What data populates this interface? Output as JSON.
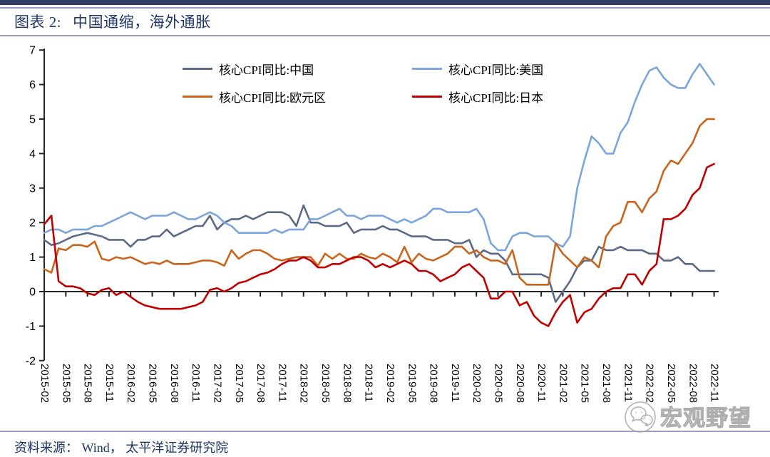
{
  "header": {
    "figure_label": "图表 2:"
  },
  "footer": {
    "source": "资料来源： Wind， 太平洋证券研究院"
  },
  "watermark": {
    "label": "宏观野望",
    "icon": "wechat-icon"
  },
  "chart_data": {
    "type": "line",
    "title": "中国通缩，海外通胀",
    "xlabel": "",
    "ylabel": "",
    "ylim": [
      -2,
      7
    ],
    "y_ticks": [
      7,
      6,
      5,
      4,
      3,
      2,
      1,
      0,
      -1,
      -2
    ],
    "grid": false,
    "legend_position": "top-inside",
    "start_month": "2015-02",
    "x_tick_every": 3,
    "x_labels": [
      "2015-02",
      "2015-05",
      "2015-08",
      "2015-11",
      "2016-02",
      "2016-05",
      "2016-08",
      "2016-11",
      "2017-02",
      "2017-05",
      "2017-08",
      "2017-11",
      "2018-02",
      "2018-05",
      "2018-08",
      "2018-11",
      "2019-02",
      "2019-05",
      "2019-08",
      "2019-11",
      "2020-02",
      "2020-05",
      "2020-08",
      "2020-11",
      "2021-02",
      "2021-05",
      "2021-08",
      "2021-11",
      "2022-02",
      "2022-05",
      "2022-08",
      "2022-11"
    ],
    "series": [
      {
        "name": "核心CPI同比:中国",
        "color": "#5B6B85",
        "values": [
          1.5,
          1.35,
          1.4,
          1.5,
          1.6,
          1.65,
          1.7,
          1.65,
          1.6,
          1.5,
          1.5,
          1.5,
          1.3,
          1.5,
          1.5,
          1.6,
          1.6,
          1.8,
          1.6,
          1.7,
          1.8,
          1.9,
          1.9,
          2.2,
          1.8,
          2.0,
          2.1,
          2.1,
          2.2,
          2.1,
          2.2,
          2.3,
          2.3,
          2.3,
          2.2,
          1.9,
          2.5,
          2.0,
          2.0,
          1.9,
          1.9,
          1.9,
          2.0,
          1.7,
          1.8,
          1.8,
          1.8,
          1.9,
          1.8,
          1.8,
          1.7,
          1.6,
          1.6,
          1.6,
          1.5,
          1.5,
          1.5,
          1.4,
          1.4,
          1.5,
          1.0,
          1.2,
          1.1,
          1.1,
          0.9,
          0.5,
          0.5,
          0.5,
          0.5,
          0.5,
          0.4,
          -0.3,
          0.0,
          0.3,
          0.7,
          0.9,
          0.9,
          1.3,
          1.2,
          1.2,
          1.3,
          1.2,
          1.2,
          1.2,
          1.1,
          1.1,
          0.9,
          0.9,
          1.0,
          0.8,
          0.8,
          0.6,
          0.6,
          0.6
        ]
      },
      {
        "name": "核心CPI同比:美国",
        "color": "#7CA5DB",
        "values": [
          1.7,
          1.8,
          1.8,
          1.7,
          1.8,
          1.8,
          1.8,
          1.9,
          1.9,
          2.0,
          2.1,
          2.2,
          2.3,
          2.2,
          2.1,
          2.2,
          2.2,
          2.2,
          2.3,
          2.2,
          2.1,
          2.1,
          2.2,
          2.3,
          2.2,
          2.0,
          1.9,
          1.7,
          1.7,
          1.7,
          1.7,
          1.7,
          1.8,
          1.7,
          1.8,
          1.8,
          1.8,
          2.1,
          2.1,
          2.2,
          2.3,
          2.4,
          2.2,
          2.2,
          2.1,
          2.2,
          2.2,
          2.2,
          2.1,
          2.0,
          2.1,
          2.0,
          2.1,
          2.2,
          2.4,
          2.4,
          2.3,
          2.3,
          2.3,
          2.3,
          2.4,
          2.1,
          1.4,
          1.2,
          1.2,
          1.6,
          1.7,
          1.7,
          1.6,
          1.6,
          1.6,
          1.4,
          1.3,
          1.6,
          3.0,
          3.8,
          4.5,
          4.3,
          4.0,
          4.0,
          4.6,
          4.9,
          5.5,
          6.0,
          6.4,
          6.5,
          6.2,
          6.0,
          5.9,
          5.9,
          6.3,
          6.6,
          6.3,
          6.0
        ]
      },
      {
        "name": "核心CPI同比:欧元区",
        "color": "#C8651B",
        "values": [
          0.65,
          0.55,
          1.25,
          1.2,
          1.35,
          1.35,
          1.3,
          1.45,
          0.95,
          0.9,
          1.0,
          0.95,
          1.0,
          0.9,
          0.8,
          0.85,
          0.8,
          0.9,
          0.8,
          0.8,
          0.8,
          0.85,
          0.9,
          0.9,
          0.85,
          0.75,
          1.2,
          0.95,
          1.1,
          1.2,
          1.2,
          1.1,
          0.95,
          0.9,
          0.95,
          1.0,
          1.0,
          1.0,
          0.75,
          1.1,
          0.95,
          1.1,
          0.95,
          0.95,
          1.1,
          1.0,
          0.95,
          1.1,
          1.0,
          0.85,
          1.3,
          0.85,
          1.1,
          0.95,
          0.9,
          1.0,
          1.1,
          1.3,
          1.3,
          1.1,
          1.2,
          1.0,
          0.9,
          0.9,
          0.8,
          1.2,
          0.4,
          0.2,
          0.2,
          0.2,
          0.2,
          1.4,
          1.1,
          0.9,
          0.7,
          1.0,
          0.9,
          0.7,
          1.6,
          1.9,
          2.0,
          2.6,
          2.6,
          2.3,
          2.7,
          2.9,
          3.5,
          3.8,
          3.7,
          4.0,
          4.3,
          4.8,
          5.0,
          5.0
        ]
      },
      {
        "name": "核心CPI同比:日本",
        "color": "#C00000",
        "values": [
          1.95,
          2.2,
          0.3,
          0.15,
          0.15,
          0.1,
          -0.05,
          -0.1,
          0.05,
          0.1,
          -0.1,
          0.0,
          -0.15,
          -0.3,
          -0.4,
          -0.45,
          -0.5,
          -0.5,
          -0.5,
          -0.5,
          -0.45,
          -0.4,
          -0.3,
          0.05,
          0.1,
          0.0,
          0.1,
          0.25,
          0.3,
          0.4,
          0.5,
          0.55,
          0.65,
          0.8,
          0.9,
          0.9,
          1.0,
          0.9,
          0.7,
          0.7,
          0.8,
          0.8,
          0.9,
          1.0,
          1.0,
          0.9,
          0.7,
          0.8,
          0.7,
          0.8,
          0.9,
          0.8,
          0.6,
          0.6,
          0.5,
          0.3,
          0.4,
          0.5,
          0.7,
          0.8,
          0.6,
          0.4,
          -0.2,
          -0.2,
          0.0,
          0.0,
          -0.4,
          -0.3,
          -0.7,
          -0.9,
          -1.0,
          -0.6,
          -0.3,
          -0.1,
          -0.9,
          -0.6,
          -0.5,
          -0.2,
          0.0,
          0.1,
          0.1,
          0.5,
          0.5,
          0.2,
          0.6,
          0.8,
          2.1,
          2.1,
          2.2,
          2.4,
          2.8,
          3.0,
          3.6,
          3.7
        ]
      }
    ]
  }
}
